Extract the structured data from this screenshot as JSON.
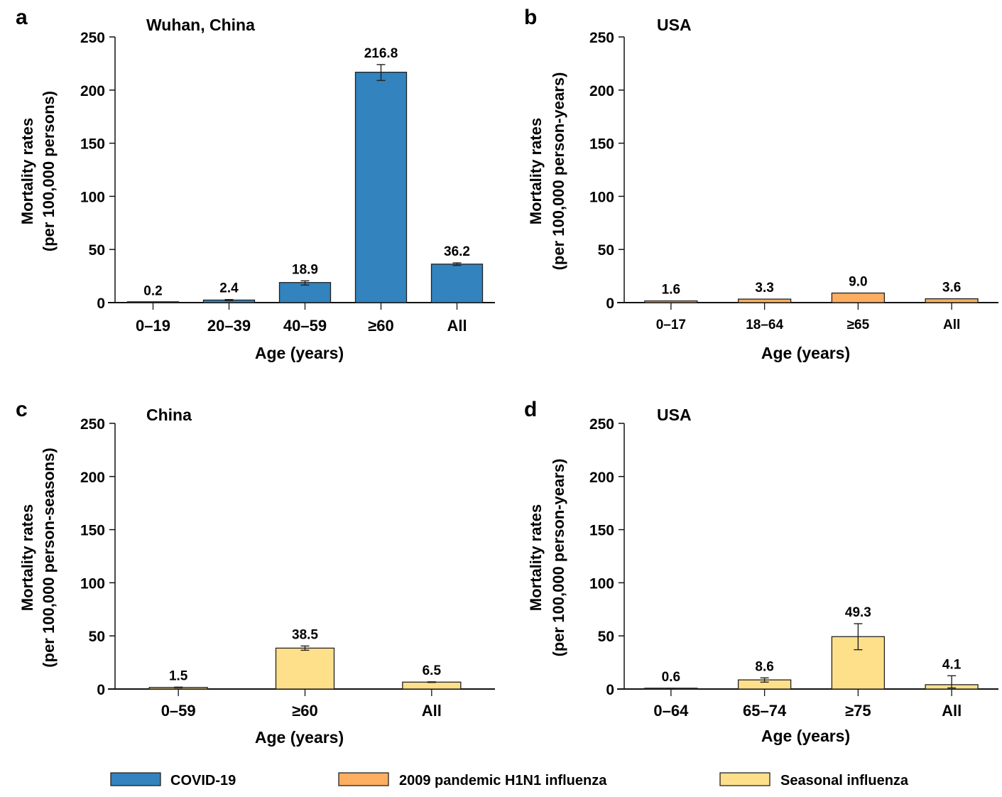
{
  "legend": {
    "items": [
      {
        "key": "covid",
        "label": "COVID-19",
        "color": "#3283BE"
      },
      {
        "key": "h1n1",
        "label": "2009 pandemic H1N1 influenza",
        "color": "#FDAE61"
      },
      {
        "key": "seasonal",
        "label": "Seasonal influenza",
        "color": "#FEE08B"
      }
    ],
    "placement": "bottom"
  },
  "chart_data": [
    {
      "type": "bar",
      "panel": "a",
      "title": "Wuhan, China",
      "xlabel": "Age (years)",
      "ylabel_lines": [
        "Mortality rates",
        "(per 100,000 persons)"
      ],
      "ylim": [
        0,
        250
      ],
      "yticks": [
        0,
        50,
        100,
        150,
        200,
        250
      ],
      "series_key": "covid",
      "categories": [
        "0–19",
        "20–39",
        "40–59",
        "≥60",
        "All"
      ],
      "values": [
        0.2,
        2.4,
        18.9,
        216.8,
        36.2
      ],
      "value_labels": [
        "0.2",
        "2.4",
        "18.9",
        "216.8",
        "36.2"
      ],
      "error_low": [
        0.1,
        1.8,
        16.5,
        209.0,
        35.0
      ],
      "error_high": [
        0.3,
        2.9,
        20.5,
        224.0,
        37.4
      ],
      "grid": false
    },
    {
      "type": "bar",
      "panel": "b",
      "title": "USA",
      "xlabel": "Age (years)",
      "ylabel_lines": [
        "Mortality rates",
        "(per 100,000 person-years)"
      ],
      "ylim": [
        0,
        250
      ],
      "yticks": [
        0,
        50,
        100,
        150,
        200,
        250
      ],
      "series_key": "h1n1",
      "categories": [
        "0–17",
        "18–64",
        "≥65",
        "All"
      ],
      "values": [
        1.6,
        3.3,
        9.0,
        3.6
      ],
      "value_labels": [
        "1.6",
        "3.3",
        "9.0",
        "3.6"
      ],
      "error_low": null,
      "error_high": null,
      "grid": false
    },
    {
      "type": "bar",
      "panel": "c",
      "title": "China",
      "xlabel": "Age (years)",
      "ylabel_lines": [
        "Mortality rates",
        "(per 100,000 person-seasons)"
      ],
      "ylim": [
        0,
        250
      ],
      "yticks": [
        0,
        50,
        100,
        150,
        200,
        250
      ],
      "series_key": "seasonal",
      "categories": [
        "0–59",
        "≥60",
        "All"
      ],
      "values": [
        1.5,
        38.5,
        6.5
      ],
      "value_labels": [
        "1.5",
        "38.5",
        "6.5"
      ],
      "error_low": [
        1.2,
        36.5,
        6.2
      ],
      "error_high": [
        1.8,
        40.5,
        6.8
      ],
      "grid": false
    },
    {
      "type": "bar",
      "panel": "d",
      "title": "USA",
      "xlabel": "Age (years)",
      "ylabel_lines": [
        "Mortality rates",
        "(per 100,000 person-years)"
      ],
      "ylim": [
        0,
        250
      ],
      "yticks": [
        0,
        50,
        100,
        150,
        200,
        250
      ],
      "series_key": "seasonal",
      "categories": [
        "0–64",
        "65–74",
        "≥75",
        "All"
      ],
      "values": [
        0.6,
        8.6,
        49.3,
        4.1
      ],
      "value_labels": [
        "0.6",
        "8.6",
        "49.3",
        "4.1"
      ],
      "error_low": [
        0.5,
        6.5,
        37.0,
        1.0
      ],
      "error_high": [
        0.7,
        10.5,
        61.5,
        12.5
      ],
      "grid": false
    }
  ]
}
